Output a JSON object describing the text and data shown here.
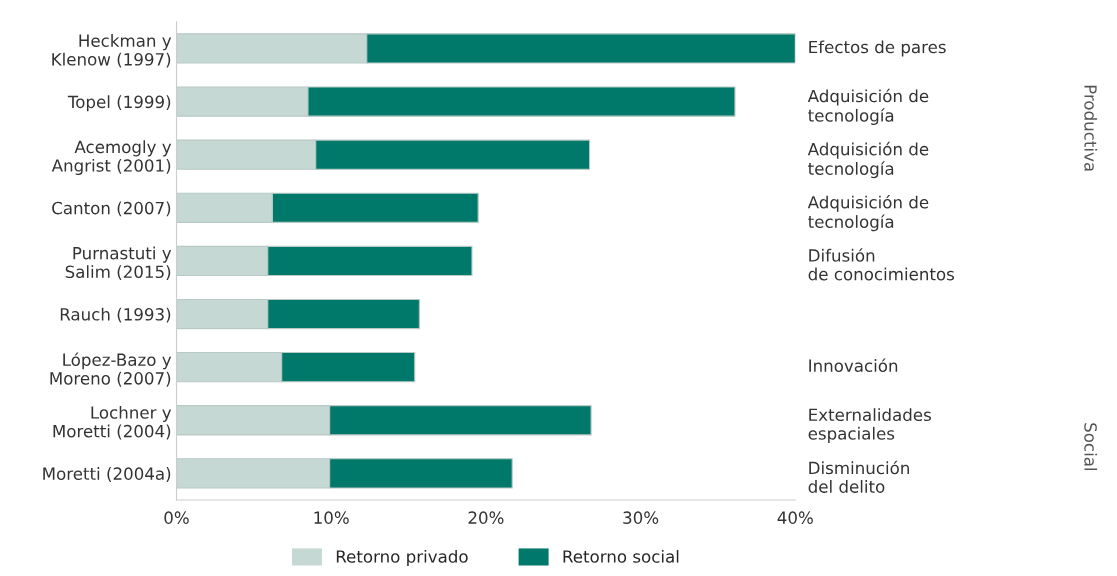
{
  "chart_data": {
    "type": "bar",
    "orientation": "horizontal",
    "stacked": true,
    "categories": [
      "Heckman y\nKlenow (1997)",
      "Topel (1999)",
      "Acemogly y\nAngrist (2001)",
      "Canton (2007)",
      "Purnastuti y\nSalim (2015)",
      "Rauch (1993)",
      "López-Bazo y\nMoreno (2007)",
      "Lochner y\nMoretti (2004)",
      "Moretti (2004a)"
    ],
    "series": [
      {
        "name": "Retorno privado",
        "color": "#c5d8d3",
        "values": [
          12.3,
          8.5,
          9.0,
          6.2,
          5.9,
          5.9,
          6.8,
          9.9,
          9.9
        ]
      },
      {
        "name": "Retorno social",
        "color": "#00796b",
        "values": [
          27.7,
          27.6,
          17.7,
          13.3,
          13.2,
          9.8,
          8.6,
          16.9,
          11.8
        ]
      }
    ],
    "xlim": [
      0,
      40
    ],
    "xticks": [
      {
        "value": 0,
        "label": "0%"
      },
      {
        "value": 10,
        "label": "10%"
      },
      {
        "value": 20,
        "label": "20%"
      },
      {
        "value": 30,
        "label": "30%"
      },
      {
        "value": 40,
        "label": "40%"
      }
    ],
    "grid": false,
    "legend": "bottom",
    "annotations": [
      "Efectos de pares",
      "Adquisición de\ntecnología",
      "Adquisición de\ntecnología",
      "Adquisición de\ntecnología",
      "Difusión\nde conocimientos",
      "Innovación",
      "Externalidades\nespaciales",
      "Disminución\ndel delito",
      "Productiva",
      "Social"
    ]
  }
}
